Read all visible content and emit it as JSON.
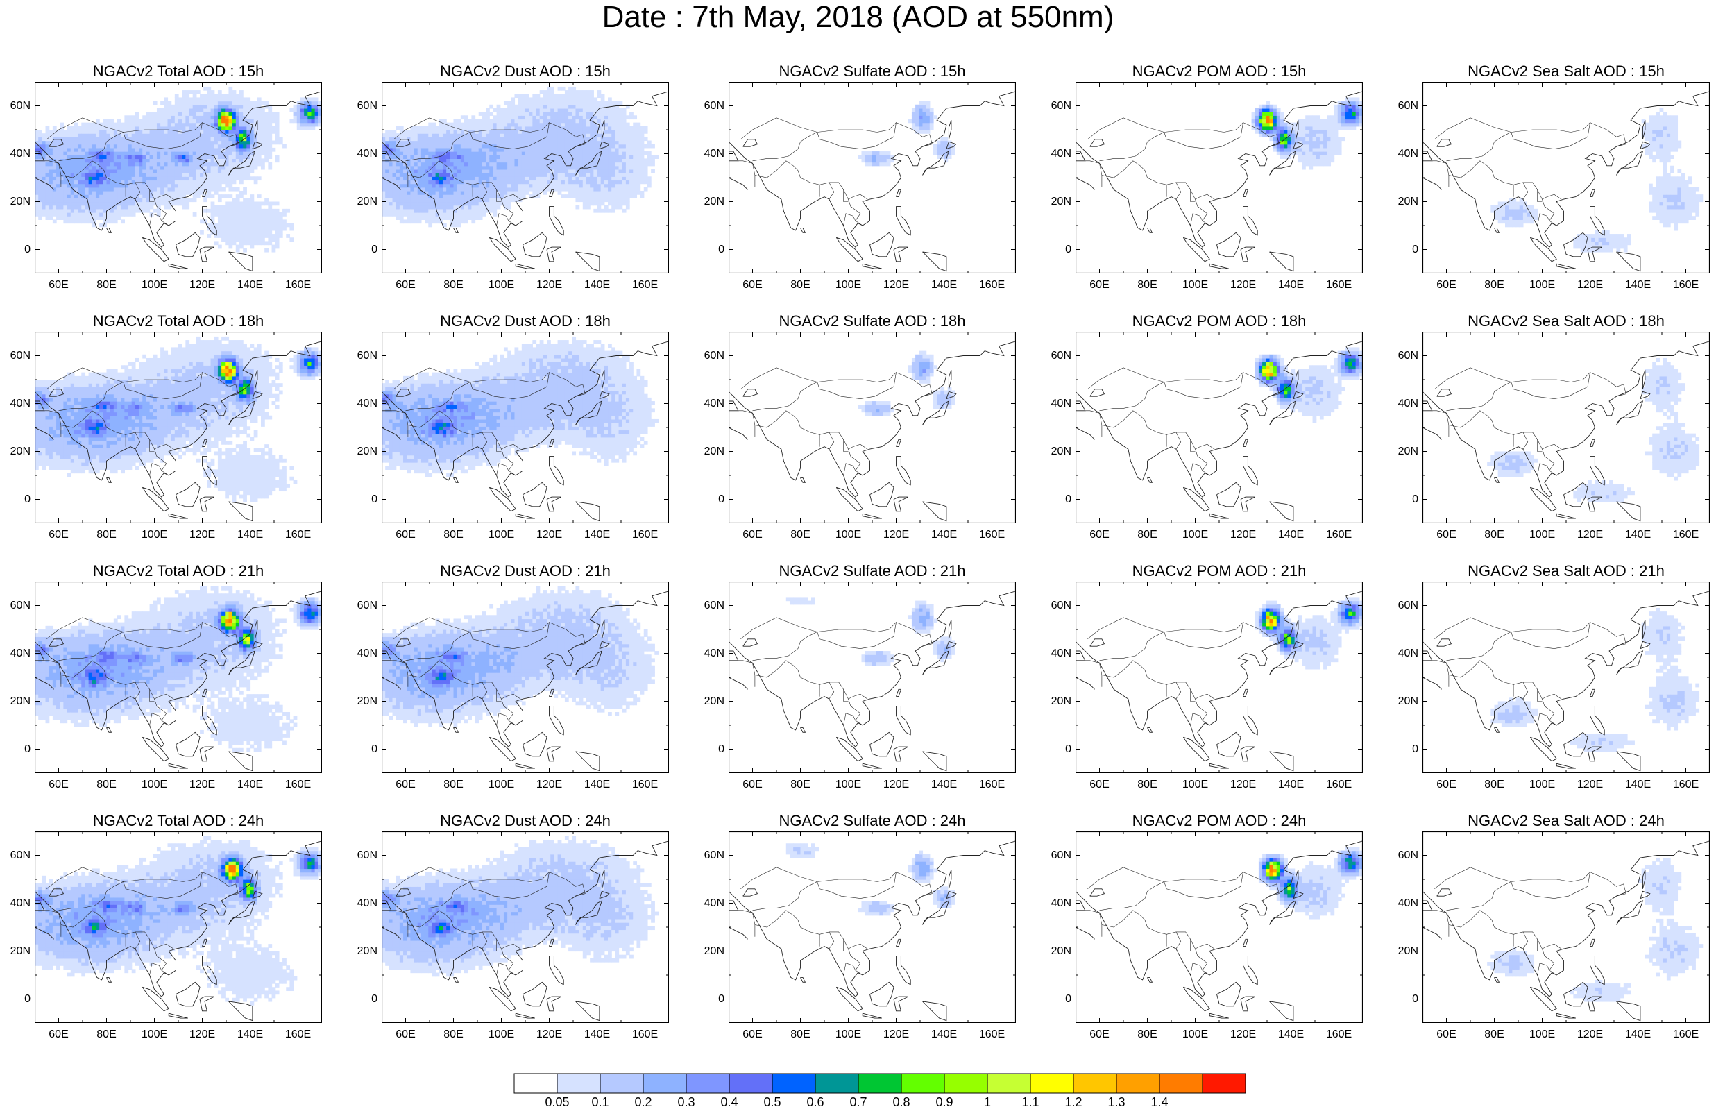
{
  "title": "Date : 7th May, 2018 (AOD at 550nm)",
  "lat_labels": [
    "60N",
    "40N",
    "20N",
    "0"
  ],
  "lon_labels": [
    "60E",
    "80E",
    "100E",
    "120E",
    "140E",
    "160E"
  ],
  "panels": [
    [
      "NGACv2 Total AOD : 15h",
      "NGACv2 Dust AOD : 15h",
      "NGACv2 Sulfate AOD : 15h",
      "NGACv2 POM AOD : 15h",
      "NGACv2 Sea Salt AOD : 15h"
    ],
    [
      "NGACv2 Total AOD : 18h",
      "NGACv2 Dust AOD : 18h",
      "NGACv2 Sulfate AOD : 18h",
      "NGACv2 POM AOD : 18h",
      "NGACv2 Sea Salt AOD : 18h"
    ],
    [
      "NGACv2 Total AOD : 21h",
      "NGACv2 Dust AOD : 21h",
      "NGACv2 Sulfate AOD : 21h",
      "NGACv2 POM AOD : 21h",
      "NGACv2 Sea Salt AOD : 21h"
    ],
    [
      "NGACv2 Total AOD : 24h",
      "NGACv2 Dust AOD : 24h",
      "NGACv2 Sulfate AOD : 24h",
      "NGACv2 POM AOD : 24h",
      "NGACv2 Sea Salt  AOD : 24h"
    ]
  ],
  "colorbar": {
    "labels": [
      "0.05",
      "0.1",
      "0.2",
      "0.3",
      "0.4",
      "0.5",
      "0.6",
      "0.7",
      "0.8",
      "0.9",
      "1",
      "1.1",
      "1.2",
      "1.3",
      "1.4"
    ],
    "colors": [
      "#ffffff",
      "#d6e2ff",
      "#b5c9ff",
      "#8eb2ff",
      "#7f96ff",
      "#6370f8",
      "#0063ff",
      "#009696",
      "#00c633",
      "#63ff00",
      "#96ff00",
      "#c6ff33",
      "#ffff00",
      "#ffc600",
      "#ffa000",
      "#ff7c00",
      "#ff1900"
    ]
  }
}
